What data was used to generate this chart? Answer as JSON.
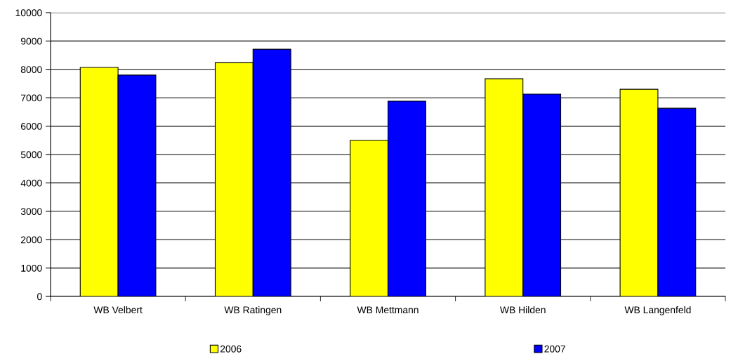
{
  "chart_data": {
    "type": "bar",
    "categories": [
      "WB Velbert",
      "WB Ratingen",
      "WB Mettmann",
      "WB Hilden",
      "WB Langenfeld"
    ],
    "series": [
      {
        "name": "2006",
        "color": "#ffff00",
        "values": [
          8070,
          8240,
          5500,
          7670,
          7300
        ]
      },
      {
        "name": "2007",
        "color": "#0000ff",
        "values": [
          7800,
          8710,
          6880,
          7130,
          6630
        ]
      }
    ],
    "ylim": [
      0,
      10000
    ],
    "yticks": [
      0,
      1000,
      2000,
      3000,
      4000,
      5000,
      6000,
      7000,
      8000,
      9000,
      10000
    ],
    "grid": "y",
    "legend": "bottom"
  }
}
